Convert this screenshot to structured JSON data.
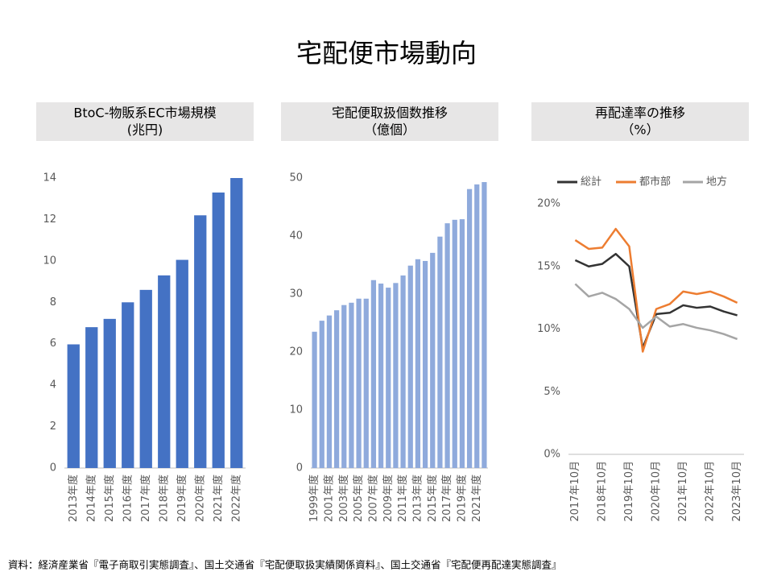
{
  "title": "宅配便市場動向",
  "source": "資料：経済産業省『電子商取引実態調査』、国土交通省『宅配便取扱実績関係資料』、国土交通省『宅配便再配達実態調査』",
  "chart_data": [
    {
      "type": "bar",
      "title": "BtoC-物販系EC市場規模",
      "subtitle": "(兆円)",
      "categories": [
        "2013年度",
        "2014年度",
        "2015年度",
        "2016年度",
        "2017年度",
        "2018年度",
        "2019年度",
        "2020年度",
        "2021年度",
        "2022年度"
      ],
      "values": [
        5.97,
        6.8,
        7.2,
        8.0,
        8.6,
        9.3,
        10.05,
        12.2,
        13.3,
        14.0
      ],
      "color": "#4472c4",
      "ylim": [
        0,
        14
      ],
      "yticks": [
        0,
        2,
        4,
        6,
        8,
        10,
        12,
        14
      ],
      "grid": false
    },
    {
      "type": "bar",
      "title": "宅配便取扱個数推移",
      "subtitle": "（億個）",
      "categories": [
        "1999年度",
        null,
        "2001年度",
        null,
        "2003年度",
        null,
        "2005年度",
        null,
        "2007年度",
        null,
        "2009年度",
        null,
        "2011年度",
        null,
        "2013年度",
        null,
        "2015年度",
        null,
        "2017年度",
        null,
        "2019年度",
        null,
        "2021年度",
        null
      ],
      "values": [
        23.5,
        25.4,
        26.3,
        27.2,
        28.1,
        28.5,
        29.2,
        29.2,
        32.4,
        31.8,
        31.1,
        31.9,
        33.2,
        34.9,
        36.0,
        35.7,
        37.1,
        39.9,
        42.2,
        42.8,
        42.9,
        48.1,
        48.9,
        49.3
      ],
      "color": "#8faadc",
      "ylim": [
        0,
        50
      ],
      "yticks": [
        0,
        10,
        20,
        30,
        40,
        50
      ],
      "grid": false
    },
    {
      "type": "line",
      "title": "再配達率の推移",
      "subtitle": "（%）",
      "categories": [
        "2017年10月",
        null,
        "2018年10月",
        null,
        "2019年10月",
        null,
        "2020年10月",
        null,
        "2021年10月",
        null,
        "2022年10月",
        null,
        "2023年10月"
      ],
      "series": [
        {
          "name": "総計",
          "color": "#333333",
          "values": [
            15.5,
            15.0,
            15.2,
            16.0,
            15.0,
            8.5,
            11.2,
            11.3,
            11.9,
            11.7,
            11.8,
            11.4,
            11.1
          ]
        },
        {
          "name": "都市部",
          "color": "#ed7d31",
          "values": [
            17.1,
            16.4,
            16.5,
            18.0,
            16.6,
            8.2,
            11.6,
            12.0,
            13.0,
            12.8,
            13.0,
            12.6,
            12.1
          ]
        },
        {
          "name": "地方",
          "color": "#a5a5a5",
          "values": [
            13.6,
            12.6,
            12.9,
            12.4,
            11.6,
            10.1,
            11.0,
            10.2,
            10.4,
            10.1,
            9.9,
            9.6,
            9.2
          ]
        }
      ],
      "ylim": [
        0,
        20
      ],
      "yticks": [
        {
          "value": 0,
          "label": "0%"
        },
        {
          "value": 5,
          "label": "5%"
        },
        {
          "value": 10,
          "label": "10%"
        },
        {
          "value": 15,
          "label": "15%"
        },
        {
          "value": 20,
          "label": "20%"
        }
      ],
      "grid": false,
      "legend": "top"
    }
  ]
}
